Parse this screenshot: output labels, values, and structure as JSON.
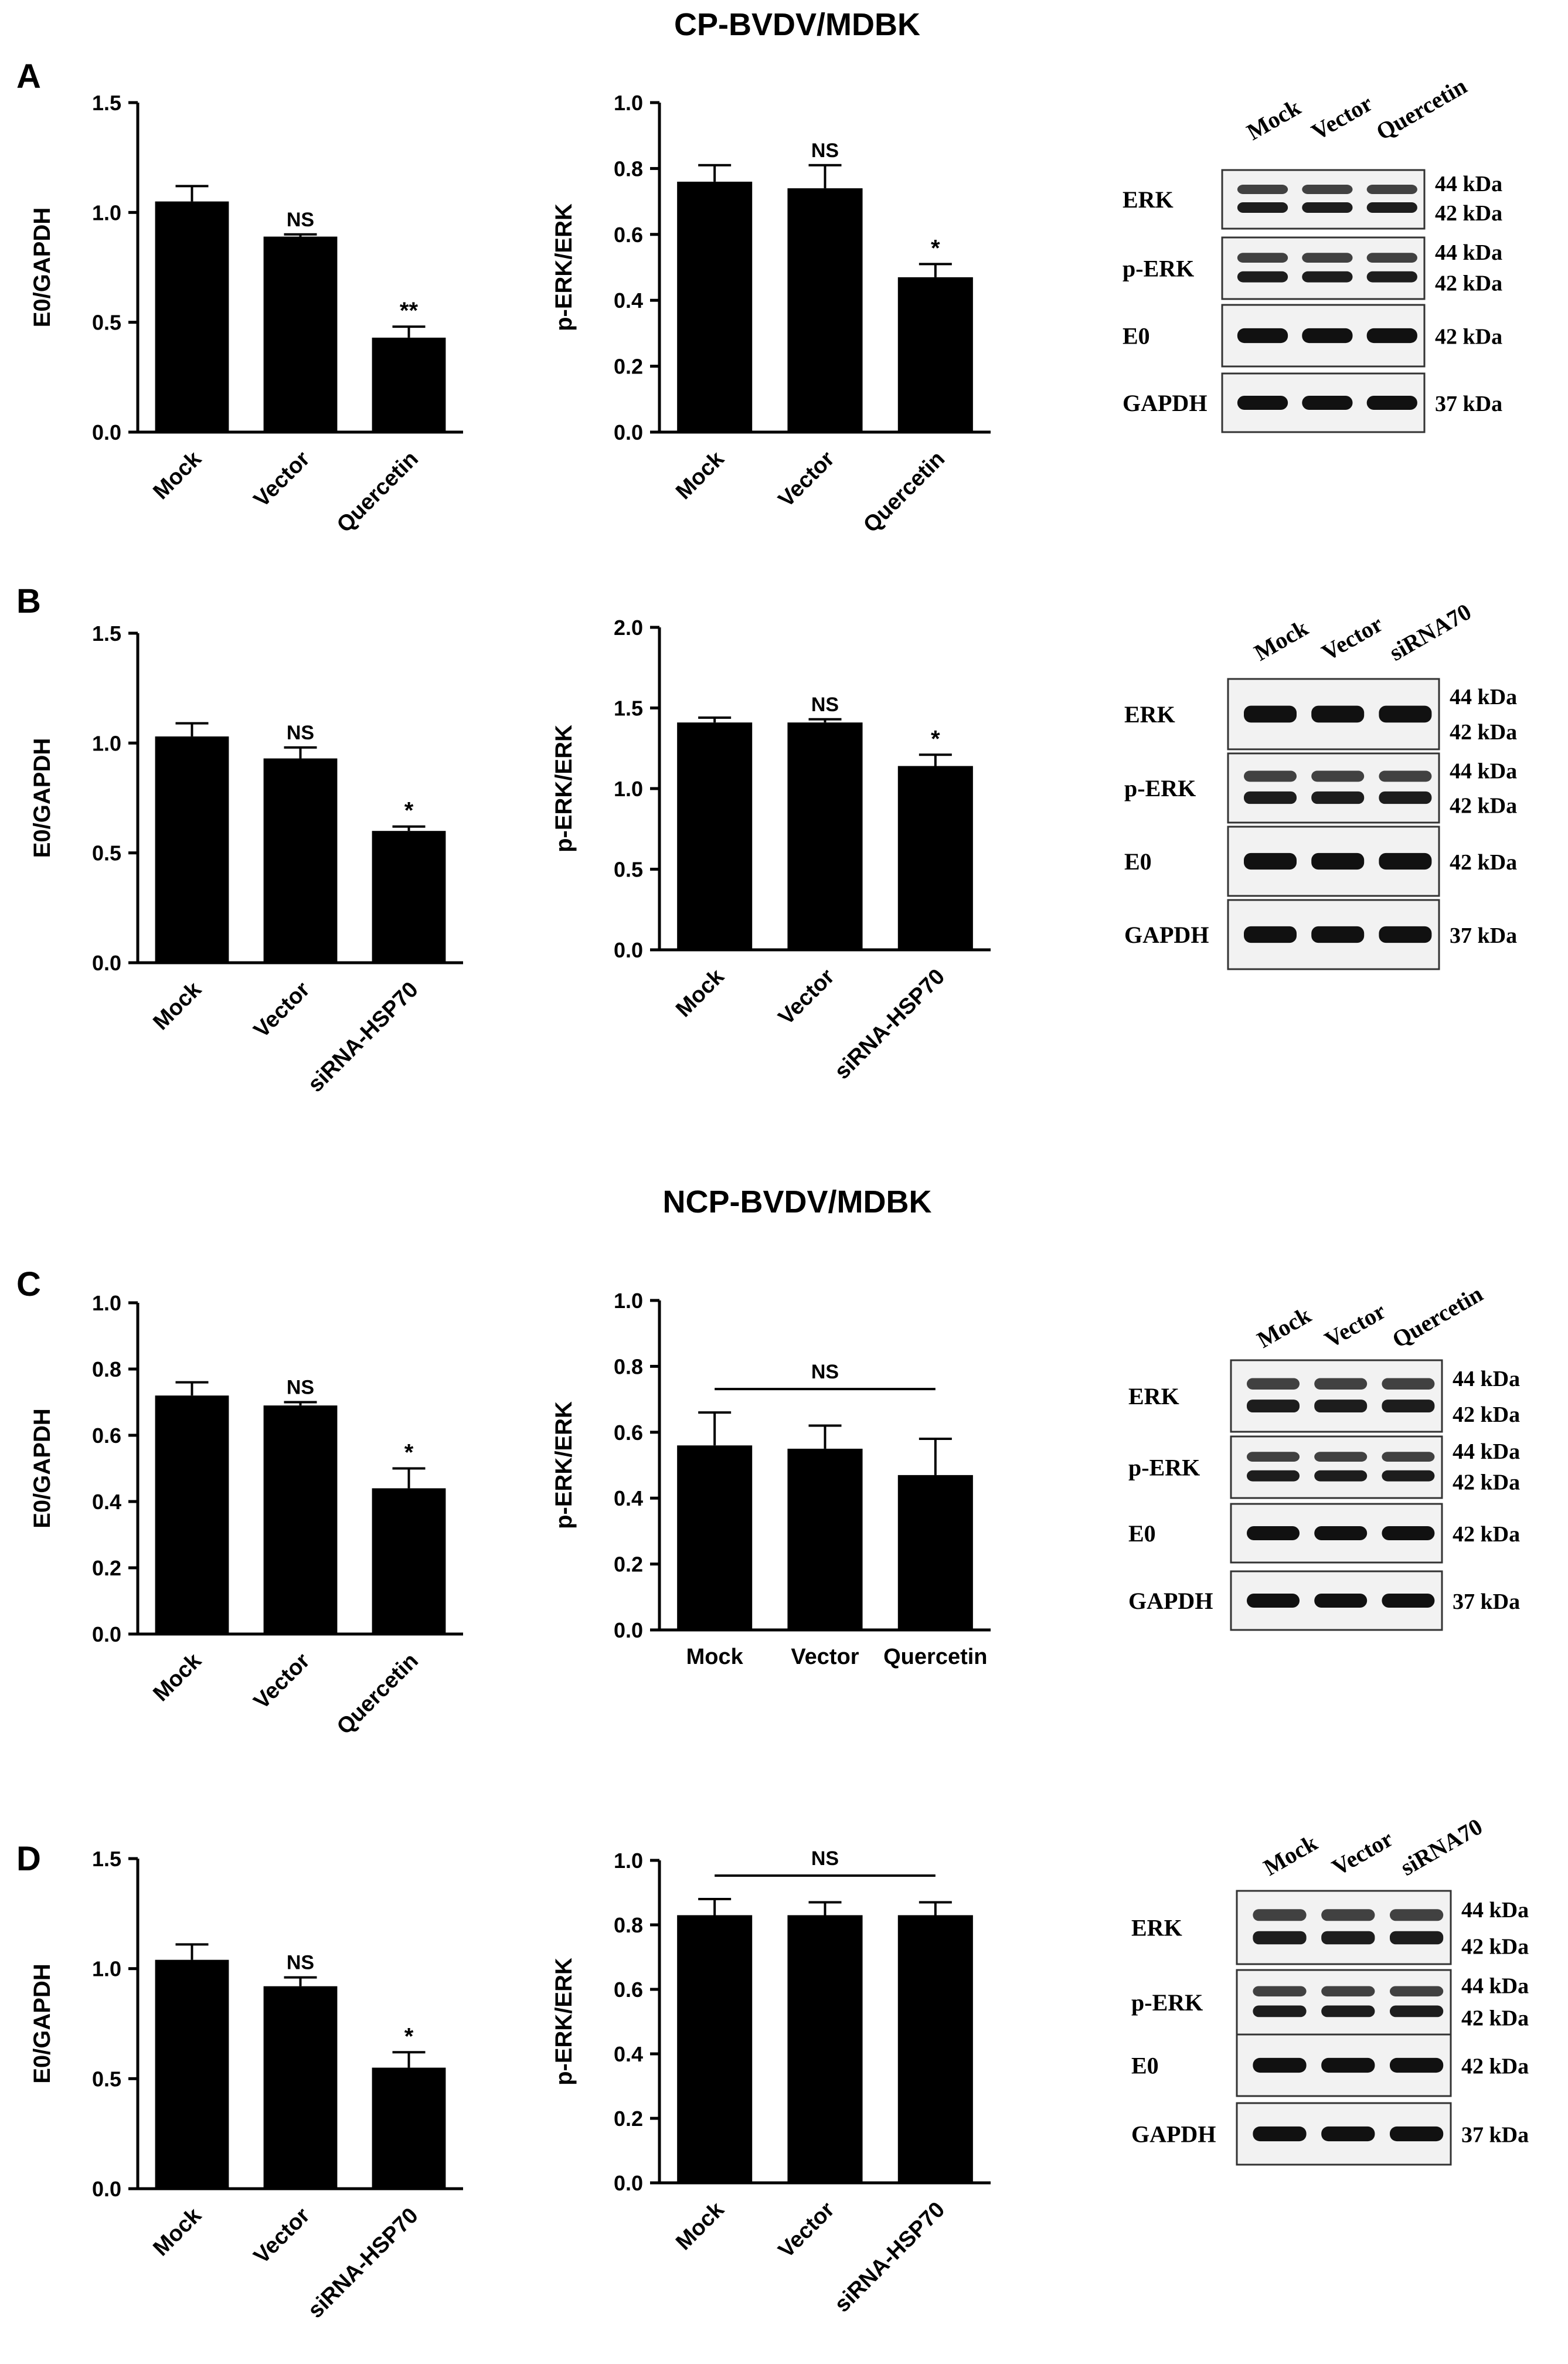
{
  "figure": {
    "sections": [
      {
        "title": "CP-BVDV/MDBK"
      },
      {
        "title": "NCP-BVDV/MDBK"
      }
    ]
  },
  "panels": [
    {
      "letter": "A"
    },
    {
      "letter": "B"
    },
    {
      "letter": "C"
    },
    {
      "letter": "D"
    }
  ],
  "chart_data": [
    {
      "id": "A1",
      "type": "bar",
      "ylabel": "E0/GAPDH",
      "ylim": [
        0,
        1.5
      ],
      "yticks": [
        "0.0",
        "0.5",
        "1.0",
        "1.5"
      ],
      "categories": [
        "Mock",
        "Vector",
        "Quercetin"
      ],
      "values": [
        1.05,
        0.89,
        0.43
      ],
      "errors": [
        0.07,
        0.01,
        0.05
      ],
      "significance": [
        "",
        "NS",
        "**"
      ],
      "rotated_labels": true
    },
    {
      "id": "A2",
      "type": "bar",
      "ylabel": "p-ERK/ERK",
      "ylim": [
        0,
        1.0
      ],
      "yticks": [
        "0.0",
        "0.2",
        "0.4",
        "0.6",
        "0.8",
        "1.0"
      ],
      "categories": [
        "Mock",
        "Vector",
        "Quercetin"
      ],
      "values": [
        0.76,
        0.74,
        0.47
      ],
      "errors": [
        0.05,
        0.07,
        0.04
      ],
      "significance": [
        "",
        "NS",
        "*"
      ],
      "rotated_labels": true
    },
    {
      "id": "B1",
      "type": "bar",
      "ylabel": "E0/GAPDH",
      "ylim": [
        0,
        1.5
      ],
      "yticks": [
        "0.0",
        "0.5",
        "1.0",
        "1.5"
      ],
      "categories": [
        "Mock",
        "Vector",
        "siRNA-HSP70"
      ],
      "values": [
        1.03,
        0.93,
        0.6
      ],
      "errors": [
        0.06,
        0.05,
        0.02
      ],
      "significance": [
        "",
        "NS",
        "*"
      ],
      "rotated_labels": true
    },
    {
      "id": "B2",
      "type": "bar",
      "ylabel": "p-ERK/ERK",
      "ylim": [
        0,
        2.0
      ],
      "yticks": [
        "0.0",
        "0.5",
        "1.0",
        "1.5",
        "2.0"
      ],
      "categories": [
        "Mock",
        "Vector",
        "siRNA-HSP70"
      ],
      "values": [
        1.41,
        1.41,
        1.14
      ],
      "errors": [
        0.03,
        0.02,
        0.07
      ],
      "significance": [
        "",
        "NS",
        "*"
      ],
      "rotated_labels": true
    },
    {
      "id": "C1",
      "type": "bar",
      "ylabel": "E0/GAPDH",
      "ylim": [
        0,
        1.0
      ],
      "yticks": [
        "0.0",
        "0.2",
        "0.4",
        "0.6",
        "0.8",
        "1.0"
      ],
      "categories": [
        "Mock",
        "Vector",
        "Quercetin"
      ],
      "values": [
        0.72,
        0.69,
        0.44
      ],
      "errors": [
        0.04,
        0.01,
        0.06
      ],
      "significance": [
        "",
        "NS",
        "*"
      ],
      "rotated_labels": true
    },
    {
      "id": "C2",
      "type": "bar",
      "ylabel": "p-ERK/ERK",
      "ylim": [
        0,
        1.0
      ],
      "yticks": [
        "0.0",
        "0.2",
        "0.4",
        "0.6",
        "0.8",
        "1.0"
      ],
      "categories": [
        "Mock",
        "Vector",
        "Quercetin"
      ],
      "values": [
        0.56,
        0.55,
        0.47
      ],
      "errors": [
        0.1,
        0.07,
        0.11
      ],
      "significance": [],
      "group_significance": "NS",
      "rotated_labels": false
    },
    {
      "id": "D1",
      "type": "bar",
      "ylabel": "E0/GAPDH",
      "ylim": [
        0,
        1.5
      ],
      "yticks": [
        "0.0",
        "0.5",
        "1.0",
        "1.5"
      ],
      "categories": [
        "Mock",
        "Vector",
        "siRNA-HSP70"
      ],
      "values": [
        1.04,
        0.92,
        0.55
      ],
      "errors": [
        0.07,
        0.04,
        0.07
      ],
      "significance": [
        "",
        "NS",
        "*"
      ],
      "rotated_labels": true
    },
    {
      "id": "D2",
      "type": "bar",
      "ylabel": "p-ERK/ERK",
      "ylim": [
        0,
        1.0
      ],
      "yticks": [
        "0.0",
        "0.2",
        "0.4",
        "0.6",
        "0.8",
        "1.0"
      ],
      "categories": [
        "Mock",
        "Vector",
        "siRNA-HSP70"
      ],
      "values": [
        0.83,
        0.83,
        0.83
      ],
      "errors": [
        0.05,
        0.04,
        0.04
      ],
      "significance": [],
      "group_significance": "NS",
      "rotated_labels": true
    }
  ],
  "blots": [
    {
      "id": "A3",
      "lanes": [
        "Mock",
        "Vector",
        "Quercetin"
      ],
      "rows": [
        {
          "name": "ERK",
          "kda": [
            "44 kDa",
            "42 kDa"
          ],
          "pattern": "double"
        },
        {
          "name": "p-ERK",
          "kda": [
            "44 kDa",
            "42 kDa"
          ],
          "pattern": "double"
        },
        {
          "name": "E0",
          "kda": [
            "42 kDa"
          ],
          "pattern": "single"
        },
        {
          "name": "GAPDH",
          "kda": [
            "37 kDa"
          ],
          "pattern": "single"
        }
      ]
    },
    {
      "id": "B3",
      "lanes": [
        "Mock",
        "Vector",
        "siRNA70"
      ],
      "rows": [
        {
          "name": "ERK",
          "kda": [
            "44 kDa",
            "42 kDa"
          ],
          "pattern": "single"
        },
        {
          "name": "p-ERK",
          "kda": [
            "44 kDa",
            "42 kDa"
          ],
          "pattern": "double"
        },
        {
          "name": "E0",
          "kda": [
            "42 kDa"
          ],
          "pattern": "single"
        },
        {
          "name": "GAPDH",
          "kda": [
            "37 kDa"
          ],
          "pattern": "single"
        }
      ]
    },
    {
      "id": "C3",
      "lanes": [
        "Mock",
        "Vector",
        "Quercetin"
      ],
      "rows": [
        {
          "name": "ERK",
          "kda": [
            "44 kDa",
            "42 kDa"
          ],
          "pattern": "double"
        },
        {
          "name": "p-ERK",
          "kda": [
            "44 kDa",
            "42 kDa"
          ],
          "pattern": "double"
        },
        {
          "name": "E0",
          "kda": [
            "42 kDa"
          ],
          "pattern": "single"
        },
        {
          "name": "GAPDH",
          "kda": [
            "37 kDa"
          ],
          "pattern": "single"
        }
      ]
    },
    {
      "id": "D3",
      "lanes": [
        "Mock",
        "Vector",
        "siRNA70"
      ],
      "rows": [
        {
          "name": "ERK",
          "kda": [
            "44 kDa",
            "42 kDa"
          ],
          "pattern": "double"
        },
        {
          "name": "p-ERK",
          "kda": [
            "44 kDa",
            "42 kDa"
          ],
          "pattern": "double"
        },
        {
          "name": "E0",
          "kda": [
            "42 kDa"
          ],
          "pattern": "single"
        },
        {
          "name": "GAPDH",
          "kda": [
            "37 kDa"
          ],
          "pattern": "single"
        }
      ]
    }
  ]
}
